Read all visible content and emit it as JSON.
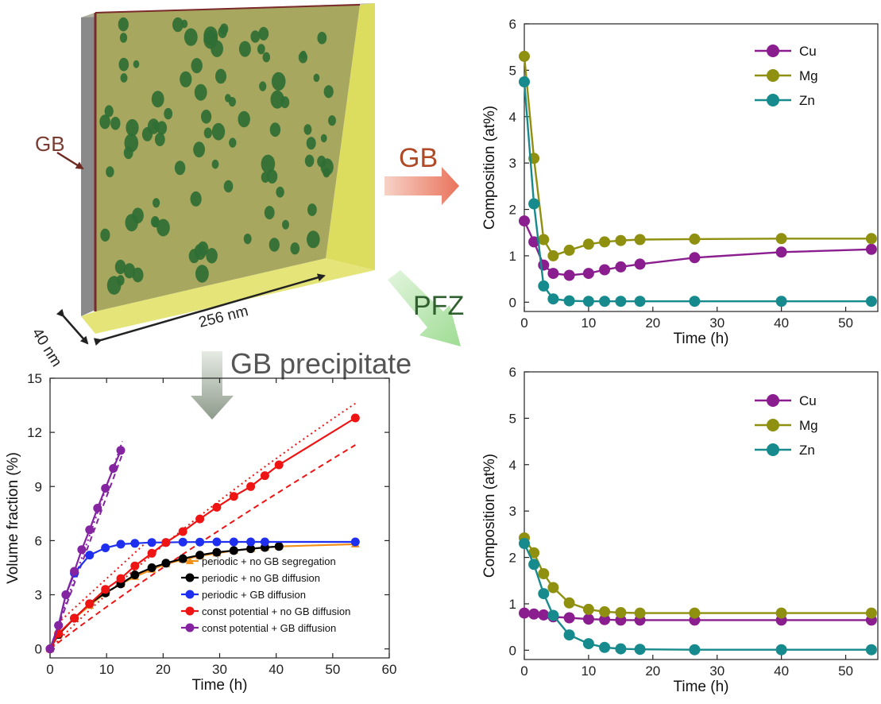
{
  "schematic": {
    "gb_label": "GB",
    "dim_length": "256 nm",
    "dim_thickness": "40 nm"
  },
  "arrows": {
    "gb": "GB",
    "pfz": "PFZ",
    "precip": "GB precipitate"
  },
  "colors": {
    "Cu": "#8b1e8f",
    "Mg": "#8f8f10",
    "Zn": "#168a8c",
    "orange": "#f0901a",
    "black": "#000000",
    "blue": "#1f2ff0",
    "red": "#ee1414",
    "purple": "#8424a0"
  },
  "chart_data": [
    {
      "id": "gb",
      "type": "line",
      "xlabel": "Time (h)",
      "ylabel": "Composition (at%)",
      "xlim": [
        0,
        55
      ],
      "ylim": [
        -0.2,
        6
      ],
      "xticks": [
        0,
        10,
        20,
        30,
        40,
        50
      ],
      "yticks": [
        0,
        1,
        2,
        3,
        4,
        5,
        6
      ],
      "legend": "top-right",
      "x": [
        0,
        1.5,
        3,
        4.5,
        7,
        10,
        12.5,
        15,
        18,
        26.5,
        40,
        54
      ],
      "series": [
        {
          "name": "Cu",
          "values": [
            1.75,
            1.3,
            0.8,
            0.62,
            0.58,
            0.62,
            0.7,
            0.76,
            0.82,
            0.96,
            1.08,
            1.14
          ]
        },
        {
          "name": "Mg",
          "values": [
            5.3,
            3.1,
            1.35,
            1.0,
            1.12,
            1.25,
            1.3,
            1.33,
            1.35,
            1.36,
            1.37,
            1.37
          ]
        },
        {
          "name": "Zn",
          "values": [
            4.75,
            2.12,
            0.35,
            0.07,
            0.03,
            0.02,
            0.02,
            0.02,
            0.02,
            0.02,
            0.02,
            0.02
          ]
        }
      ]
    },
    {
      "id": "pfz",
      "type": "line",
      "xlabel": "Time (h)",
      "ylabel": "Composition (at%)",
      "xlim": [
        0,
        55
      ],
      "ylim": [
        -0.2,
        6
      ],
      "xticks": [
        0,
        10,
        20,
        30,
        40,
        50
      ],
      "yticks": [
        0,
        1,
        2,
        3,
        4,
        5,
        6
      ],
      "legend": "top-right",
      "x": [
        0,
        1.5,
        3,
        4.5,
        7,
        10,
        12.5,
        15,
        18,
        26.5,
        40,
        54
      ],
      "series": [
        {
          "name": "Cu",
          "values": [
            0.8,
            0.78,
            0.76,
            0.72,
            0.7,
            0.67,
            0.66,
            0.65,
            0.65,
            0.65,
            0.65,
            0.65
          ]
        },
        {
          "name": "Mg",
          "values": [
            2.42,
            2.1,
            1.65,
            1.35,
            1.02,
            0.88,
            0.83,
            0.81,
            0.8,
            0.8,
            0.8,
            0.8
          ]
        },
        {
          "name": "Zn",
          "values": [
            2.3,
            1.85,
            1.22,
            0.75,
            0.33,
            0.14,
            0.06,
            0.03,
            0.02,
            0.01,
            0.01,
            0.01
          ]
        }
      ]
    },
    {
      "id": "vf",
      "type": "line",
      "xlabel": "Time (h)",
      "ylabel": "Volume fraction (%)",
      "xlim": [
        0,
        60
      ],
      "ylim": [
        -0.5,
        15
      ],
      "xticks": [
        0,
        10,
        20,
        30,
        40,
        50,
        60
      ],
      "yticks": [
        0,
        3,
        6,
        9,
        12,
        15
      ],
      "legend": "bottom-right",
      "series": [
        {
          "name": "periodic + no GB segregation",
          "marker": "triangle",
          "x": [
            0,
            1.5,
            4.3,
            7,
            9.8,
            12.5,
            15,
            18,
            20.5,
            23.5,
            26.5,
            29.5,
            32.5,
            35.5,
            38,
            40.5,
            54
          ],
          "values": [
            0,
            0.8,
            1.7,
            2.4,
            3.1,
            3.6,
            4.0,
            4.4,
            4.7,
            4.95,
            5.15,
            5.3,
            5.45,
            5.55,
            5.62,
            5.68,
            5.8
          ]
        },
        {
          "name": "periodic + no GB diffusion",
          "marker": "circle",
          "x": [
            0,
            1.5,
            4.3,
            7,
            9.8,
            12.5,
            15,
            18,
            20.5,
            23.5,
            26.5,
            29.5,
            32.5,
            35.5,
            38,
            40.5
          ],
          "values": [
            0,
            0.8,
            1.7,
            2.5,
            3.1,
            3.6,
            4.1,
            4.5,
            4.75,
            5.0,
            5.2,
            5.35,
            5.45,
            5.55,
            5.62,
            5.68
          ]
        },
        {
          "name": "periodic + GB diffusion",
          "marker": "circle",
          "x": [
            0,
            1.5,
            2.8,
            4.3,
            7,
            9.8,
            12.5,
            15,
            18,
            20.5,
            23.5,
            26.5,
            29.5,
            32.5,
            35.5,
            38,
            54
          ],
          "values": [
            0,
            1.3,
            3.0,
            4.2,
            5.2,
            5.6,
            5.8,
            5.85,
            5.9,
            5.9,
            5.92,
            5.92,
            5.93,
            5.93,
            5.93,
            5.93,
            5.93
          ]
        },
        {
          "name": "const potential + no GB diffusion",
          "marker": "circle",
          "x": [
            0,
            1.5,
            4.3,
            7,
            9.8,
            12.5,
            15,
            18,
            20.5,
            23.5,
            26.5,
            29.5,
            32.5,
            35.5,
            38,
            40.5,
            54
          ],
          "values": [
            0,
            0.85,
            1.7,
            2.5,
            3.3,
            3.9,
            4.6,
            5.3,
            5.9,
            6.5,
            7.2,
            7.85,
            8.45,
            9.0,
            9.6,
            10.2,
            12.8
          ]
        },
        {
          "name": "const potential + GB diffusion",
          "marker": "circle",
          "x": [
            0,
            1.5,
            2.8,
            4.3,
            5.6,
            7,
            8.4,
            9.8,
            11.2,
            12.5
          ],
          "values": [
            0,
            1.3,
            3.0,
            4.3,
            5.5,
            6.6,
            7.8,
            8.9,
            10.0,
            11.0
          ]
        }
      ]
    }
  ]
}
